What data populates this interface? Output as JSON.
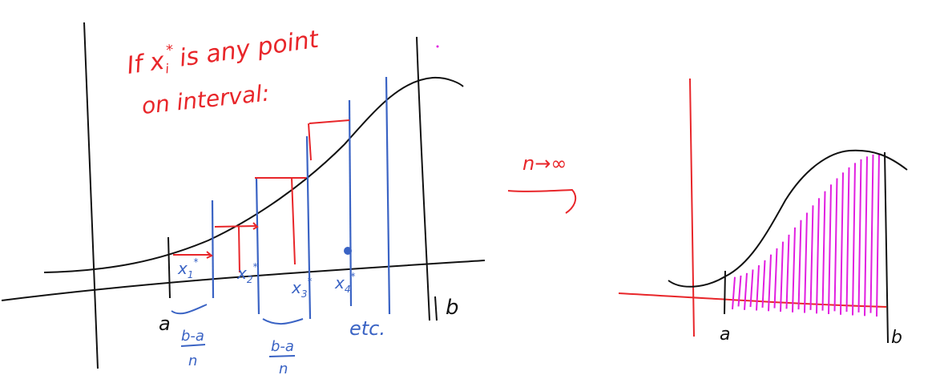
{
  "colors": {
    "ink": "#111111",
    "red": "#e8262a",
    "blue": "#3a63c4",
    "magenta": "#e11ee0"
  },
  "left_panel": {
    "note_line1": "If x",
    "note_star_sub": "i",
    "note_star": "*",
    "note_line1_rest": "is any point",
    "note_line2": "on interval:",
    "sample_labels": [
      {
        "base": "x",
        "sub": "1",
        "sup": "*"
      },
      {
        "base": "x",
        "sub": "2",
        "sup": "*"
      },
      {
        "base": "x",
        "sub": "3",
        "sup": "*"
      },
      {
        "base": "x",
        "sub": "4",
        "sup": "*"
      }
    ],
    "label_a": "a",
    "label_b": "b",
    "width_label_1": {
      "num": "b-a",
      "den": "n"
    },
    "width_label_2": {
      "num": "b-a",
      "den": "n"
    },
    "etc": "etc."
  },
  "arrow": {
    "label": "n→∞"
  },
  "right_panel": {
    "label_a": "a",
    "label_b": "b"
  }
}
